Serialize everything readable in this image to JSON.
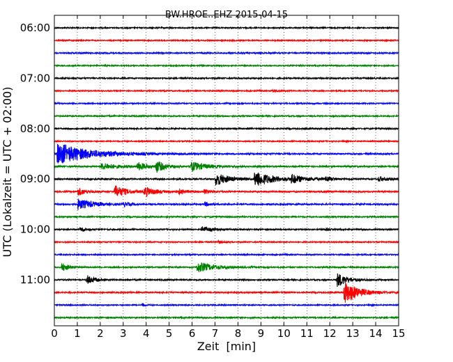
{
  "chart_data": {
    "type": "line",
    "title": "BW.HROE..EHZ 2015-04-15",
    "xlabel": "Zeit  [min]",
    "ylabel": "UTC (Lokalzeit = UTC + 02:00)",
    "xlim": [
      0,
      15
    ],
    "x_ticks": [
      0,
      1,
      2,
      3,
      4,
      5,
      6,
      7,
      8,
      9,
      10,
      11,
      12,
      13,
      14,
      15
    ],
    "x_tick_labels": [
      "0",
      "1",
      "2",
      "3",
      "4",
      "5",
      "6",
      "7",
      "8",
      "9",
      "10",
      "11",
      "12",
      "13",
      "14",
      "15"
    ],
    "y_tick_labels": [
      "06:00",
      "07:00",
      "08:00",
      "09:00",
      "10:00",
      "11:00"
    ],
    "grid": "vertical dotted lines at each minute",
    "colors": [
      "#000000",
      "#ff0000",
      "#0000ff",
      "#008000"
    ],
    "series": [
      {
        "start": "06:00",
        "color": "#000000",
        "noise": 0.8,
        "events": []
      },
      {
        "start": "06:15",
        "color": "#ff0000",
        "noise": 0.8,
        "events": []
      },
      {
        "start": "06:30",
        "color": "#0000ff",
        "noise": 0.9,
        "events": []
      },
      {
        "start": "06:45",
        "color": "#008000",
        "noise": 0.8,
        "events": []
      },
      {
        "start": "07:00",
        "color": "#000000",
        "noise": 0.9,
        "events": []
      },
      {
        "start": "07:15",
        "color": "#ff0000",
        "noise": 0.8,
        "events": [
          {
            "t": 9.5,
            "amp": 2.5,
            "dur": 0.4
          }
        ]
      },
      {
        "start": "07:30",
        "color": "#0000ff",
        "noise": 0.8,
        "events": []
      },
      {
        "start": "07:45",
        "color": "#008000",
        "noise": 0.9,
        "events": []
      },
      {
        "start": "08:00",
        "color": "#000000",
        "noise": 0.9,
        "events": []
      },
      {
        "start": "08:15",
        "color": "#ff0000",
        "noise": 0.8,
        "events": []
      },
      {
        "start": "08:30",
        "color": "#0000ff",
        "noise": 1.0,
        "events": [
          {
            "t": 0.1,
            "amp": 16,
            "dur": 3.0
          }
        ]
      },
      {
        "start": "08:45",
        "color": "#008000",
        "noise": 1.0,
        "events": [
          {
            "t": 2.0,
            "amp": 5,
            "dur": 1.5
          },
          {
            "t": 3.6,
            "amp": 6,
            "dur": 0.9
          },
          {
            "t": 4.4,
            "amp": 9,
            "dur": 0.8
          },
          {
            "t": 5.9,
            "amp": 7,
            "dur": 1.5
          }
        ]
      },
      {
        "start": "09:00",
        "color": "#000000",
        "noise": 1.0,
        "events": [
          {
            "t": 7.0,
            "amp": 10,
            "dur": 1.2
          },
          {
            "t": 8.7,
            "amp": 12,
            "dur": 1.6
          },
          {
            "t": 10.3,
            "amp": 6,
            "dur": 1.2
          },
          {
            "t": 11.8,
            "amp": 4,
            "dur": 0.6
          },
          {
            "t": 14.1,
            "amp": 4,
            "dur": 0.8
          }
        ]
      },
      {
        "start": "09:15",
        "color": "#ff0000",
        "noise": 1.0,
        "events": [
          {
            "t": 1.0,
            "amp": 6,
            "dur": 0.8
          },
          {
            "t": 2.6,
            "amp": 10,
            "dur": 1.0
          },
          {
            "t": 3.9,
            "amp": 7,
            "dur": 1.0
          },
          {
            "t": 5.4,
            "amp": 4,
            "dur": 0.6
          },
          {
            "t": 6.5,
            "amp": 4,
            "dur": 0.6
          }
        ]
      },
      {
        "start": "09:30",
        "color": "#0000ff",
        "noise": 1.0,
        "events": [
          {
            "t": 1.0,
            "amp": 8,
            "dur": 1.4
          },
          {
            "t": 3.0,
            "amp": 3,
            "dur": 0.6
          },
          {
            "t": 6.5,
            "amp": 3,
            "dur": 0.6
          }
        ]
      },
      {
        "start": "09:45",
        "color": "#008000",
        "noise": 0.9,
        "events": []
      },
      {
        "start": "10:00",
        "color": "#000000",
        "noise": 0.9,
        "events": [
          {
            "t": 1.1,
            "amp": 4,
            "dur": 0.5
          },
          {
            "t": 6.4,
            "amp": 5,
            "dur": 0.8
          },
          {
            "t": 11.8,
            "amp": 2,
            "dur": 0.3
          }
        ]
      },
      {
        "start": "10:15",
        "color": "#ff0000",
        "noise": 0.8,
        "events": [
          {
            "t": 7.1,
            "amp": 2.5,
            "dur": 0.4
          }
        ]
      },
      {
        "start": "10:30",
        "color": "#0000ff",
        "noise": 0.8,
        "events": []
      },
      {
        "start": "10:45",
        "color": "#008000",
        "noise": 0.9,
        "events": [
          {
            "t": 0.3,
            "amp": 7,
            "dur": 0.6
          },
          {
            "t": 6.2,
            "amp": 8,
            "dur": 1.5
          }
        ]
      },
      {
        "start": "11:00",
        "color": "#000000",
        "noise": 0.9,
        "events": [
          {
            "t": 1.4,
            "amp": 7,
            "dur": 0.7
          },
          {
            "t": 12.3,
            "amp": 11,
            "dur": 0.9
          }
        ]
      },
      {
        "start": "11:15",
        "color": "#ff0000",
        "noise": 0.9,
        "events": [
          {
            "t": 12.6,
            "amp": 18,
            "dur": 1.3
          }
        ]
      },
      {
        "start": "11:30",
        "color": "#0000ff",
        "noise": 0.8,
        "events": [
          {
            "t": 3.8,
            "amp": 4,
            "dur": 0.2
          }
        ]
      },
      {
        "start": "11:45",
        "color": "#008000",
        "noise": 0.9,
        "events": []
      }
    ]
  }
}
